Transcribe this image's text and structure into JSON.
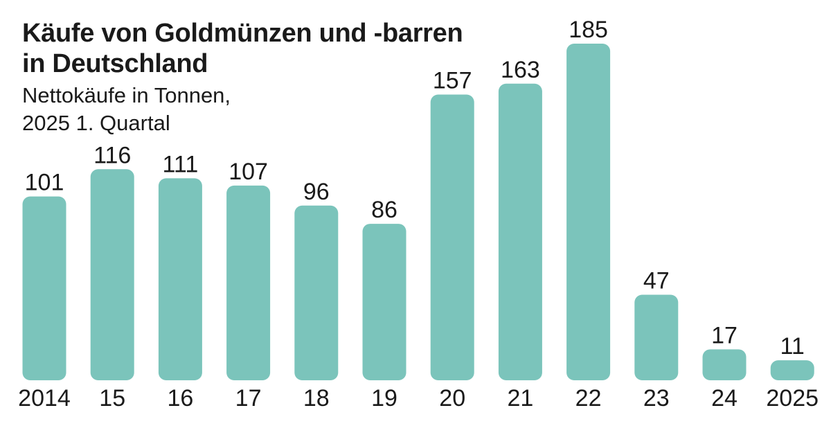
{
  "chart_data": {
    "type": "bar",
    "title": "Käufe von Goldmünzen und -barren in Deutschland",
    "subtitle_line1": "Nettokäufe in Tonnen,",
    "subtitle_line2": "2025 1. Quartal",
    "categories": [
      "2014",
      "15",
      "16",
      "17",
      "18",
      "19",
      "20",
      "21",
      "22",
      "23",
      "24",
      "2025"
    ],
    "values": [
      101,
      116,
      111,
      107,
      96,
      86,
      157,
      163,
      185,
      47,
      17,
      11
    ],
    "xlabel": "",
    "ylabel": "Tonnen",
    "ylim": [
      0,
      185
    ],
    "grid": false,
    "bar_color": "#7bc4bb"
  }
}
